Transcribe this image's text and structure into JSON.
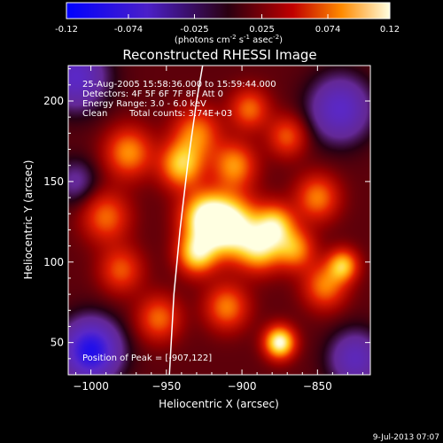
{
  "colorbar": {
    "ticks": [
      "-0.12",
      "-0.074",
      "-0.025",
      "0.025",
      "0.074",
      "0.12"
    ],
    "units_main": "(photons cm",
    "units_exp1": "-2",
    "units_mid": " s",
    "units_exp2": "-1",
    "units_end": " asec",
    "units_exp3": "-2",
    "units_close": ")"
  },
  "annotation": {
    "line1": "25-Aug-2005 15:58:36.000 to 15:59:44.000",
    "line2": "Detectors: 4F 5F 6F 7F 8F, Att 0",
    "line3": "Energy Range: 3.0 - 6.0 keV",
    "line4_a": "Clean",
    "line4_b": "Total counts: 3.74E+03",
    "peak": "Position of Peak = [-907,122]"
  },
  "footer": {
    "timestamp": "9-Jul-2013 07:07"
  },
  "colors": {
    "background": "#000000",
    "limb": "#ffffff"
  },
  "chart_data": {
    "type": "heatmap",
    "title": "Reconstructed RHESSI Image",
    "xlabel": "Heliocentric X (arcsec)",
    "ylabel": "Heliocentric Y (arcsec)",
    "xlim": [
      -1015,
      -815
    ],
    "ylim": [
      30,
      222
    ],
    "xticks": [
      -1000,
      -950,
      -900,
      -850
    ],
    "yticks": [
      50,
      100,
      150,
      200
    ],
    "color_range": [
      -0.12,
      0.12
    ],
    "peak": [
      -907,
      122
    ],
    "sources": [
      {
        "x": -908,
        "y": 122,
        "amp": 0.12,
        "sigma": 13
      },
      {
        "x": -925,
        "y": 128,
        "amp": 0.09,
        "sigma": 11
      },
      {
        "x": -888,
        "y": 108,
        "amp": 0.075,
        "sigma": 10
      },
      {
        "x": -878,
        "y": 123,
        "amp": 0.08,
        "sigma": 9
      },
      {
        "x": -865,
        "y": 108,
        "amp": 0.065,
        "sigma": 9
      },
      {
        "x": -930,
        "y": 105,
        "amp": 0.085,
        "sigma": 9
      },
      {
        "x": -940,
        "y": 160,
        "amp": 0.08,
        "sigma": 10
      },
      {
        "x": -905,
        "y": 160,
        "amp": 0.065,
        "sigma": 10
      },
      {
        "x": -930,
        "y": 180,
        "amp": 0.06,
        "sigma": 11
      },
      {
        "x": -975,
        "y": 168,
        "amp": 0.065,
        "sigma": 11
      },
      {
        "x": -990,
        "y": 128,
        "amp": 0.055,
        "sigma": 11
      },
      {
        "x": -980,
        "y": 95,
        "amp": 0.05,
        "sigma": 10
      },
      {
        "x": -955,
        "y": 65,
        "amp": 0.055,
        "sigma": 10
      },
      {
        "x": -910,
        "y": 72,
        "amp": 0.06,
        "sigma": 10
      },
      {
        "x": -875,
        "y": 50,
        "amp": 0.11,
        "sigma": 7
      },
      {
        "x": -845,
        "y": 85,
        "amp": 0.06,
        "sigma": 10
      },
      {
        "x": -833,
        "y": 98,
        "amp": 0.075,
        "sigma": 7
      },
      {
        "x": -850,
        "y": 140,
        "amp": 0.06,
        "sigma": 10
      },
      {
        "x": -895,
        "y": 195,
        "amp": 0.055,
        "sigma": 9
      },
      {
        "x": -870,
        "y": 178,
        "amp": 0.05,
        "sigma": 9
      },
      {
        "x": -1000,
        "y": 45,
        "amp": -0.11,
        "sigma": 13
      },
      {
        "x": -1010,
        "y": 215,
        "amp": -0.07,
        "sigma": 14
      },
      {
        "x": -835,
        "y": 195,
        "amp": -0.07,
        "sigma": 14
      },
      {
        "x": -825,
        "y": 40,
        "amp": -0.06,
        "sigma": 12
      },
      {
        "x": -1010,
        "y": 150,
        "amp": -0.035,
        "sigma": 10
      }
    ],
    "limb": [
      [
        -948,
        30
      ],
      [
        -945,
        80
      ],
      [
        -941,
        120
      ],
      [
        -936,
        160
      ],
      [
        -930,
        200
      ],
      [
        -926,
        222
      ]
    ]
  }
}
